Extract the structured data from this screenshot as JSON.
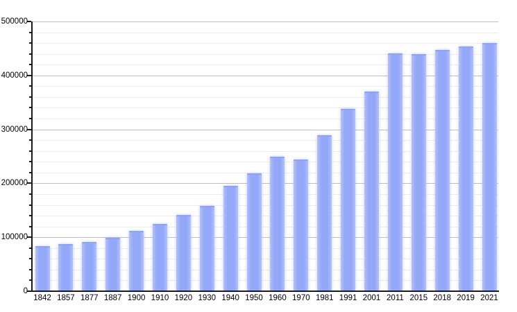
{
  "chart_data": {
    "type": "bar",
    "title": "",
    "xlabel": "",
    "ylabel": "",
    "categories": [
      "1842",
      "1857",
      "1877",
      "1887",
      "1900",
      "1910",
      "1920",
      "1930",
      "1940",
      "1950",
      "1960",
      "1970",
      "1981",
      "1991",
      "2001",
      "2011",
      "2015",
      "2018",
      "2019",
      "2021"
    ],
    "values": [
      83627,
      87803,
      91805,
      98538,
      111693,
      125057,
      141846,
      158724,
      195145,
      218375,
      249738,
      243759,
      288631,
      338250,
      370745,
      441354,
      439712,
      447182,
      453258,
      460349
    ],
    "ylim": [
      0,
      500000
    ],
    "y_major_step": 100000,
    "y_minor_step": 20000,
    "y_tick_labels": [
      "0",
      "100000",
      "200000",
      "300000",
      "400000",
      "500000"
    ],
    "grid": "on",
    "legend": "none",
    "colors": {
      "bar_fill": "#92a7f7",
      "bar_edge": "#8ea3f4",
      "axis": "#1a1a1a",
      "grid_major": "#bdbdbd",
      "grid_minor": "#ececec",
      "background": "#ffffff",
      "text": "#000000"
    }
  }
}
